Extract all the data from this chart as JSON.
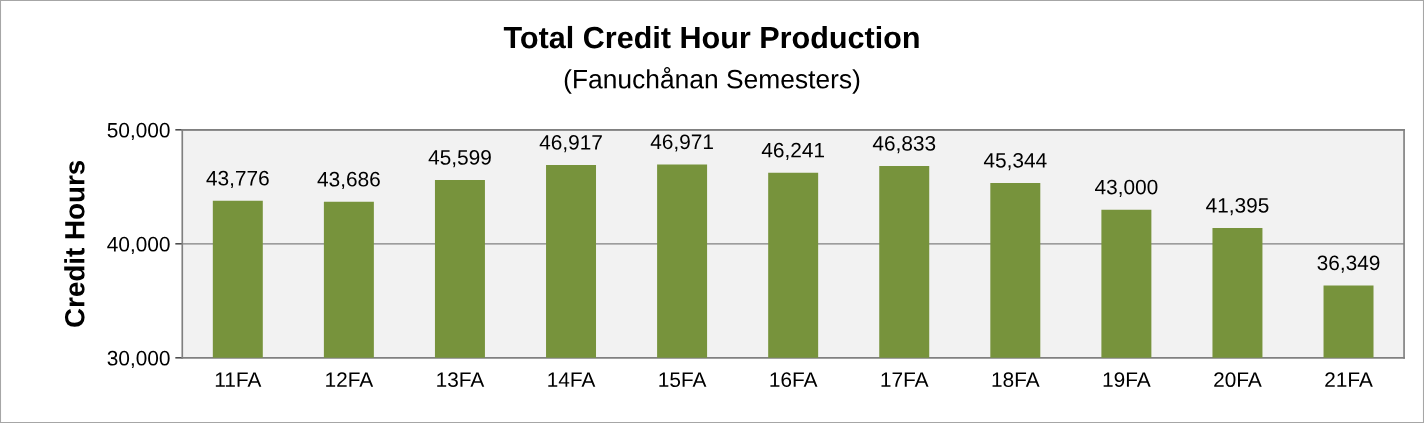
{
  "chart_data": {
    "type": "bar",
    "title": "Total Credit Hour Production",
    "subtitle": "(Fanuchånan Semesters)",
    "ylabel": "Credit Hours",
    "categories": [
      "11FA",
      "12FA",
      "13FA",
      "14FA",
      "15FA",
      "16FA",
      "17FA",
      "18FA",
      "19FA",
      "20FA",
      "21FA"
    ],
    "values": [
      43776,
      43686,
      45599,
      46917,
      46971,
      46241,
      46833,
      45344,
      43000,
      41395,
      36349
    ],
    "value_labels": [
      "43,776",
      "43,686",
      "45,599",
      "46,917",
      "46,971",
      "46,241",
      "46,833",
      "45,344",
      "43,000",
      "41,395",
      "36,349"
    ],
    "color": "#77933c",
    "ylim": [
      30000,
      50000
    ],
    "yticks": [
      {
        "value": 30000,
        "label": "30,000"
      },
      {
        "value": 40000,
        "label": "40,000"
      },
      {
        "value": 50000,
        "label": "50,000"
      }
    ],
    "grid": "y",
    "legend": false
  }
}
